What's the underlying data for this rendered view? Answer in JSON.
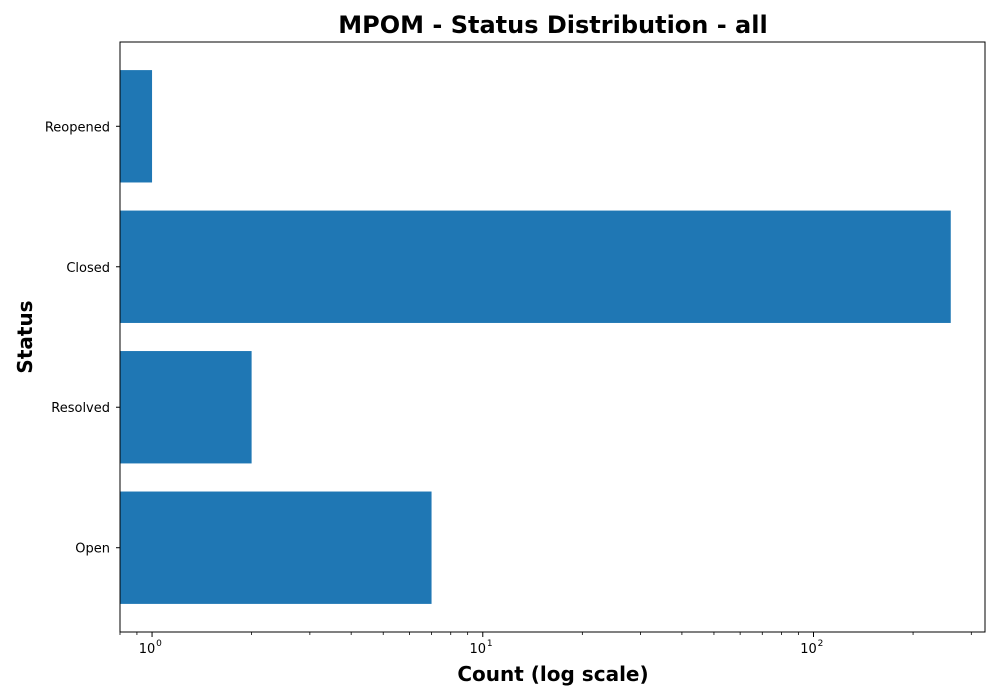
{
  "chart_data": {
    "type": "bar",
    "orientation": "horizontal",
    "title": "MPOM - Status Distribution - all",
    "xlabel": "Count (log scale)",
    "ylabel": "Status",
    "x_scale": "log",
    "xlim": [
      0.8,
      330
    ],
    "x_tick_labels": [
      {
        "value": 1,
        "base": "10",
        "exp": "0"
      },
      {
        "value": 10,
        "base": "10",
        "exp": "1"
      },
      {
        "value": 100,
        "base": "10",
        "exp": "2"
      }
    ],
    "categories": [
      "Open",
      "Resolved",
      "Closed",
      "Reopened"
    ],
    "values": [
      7,
      2,
      260,
      1
    ],
    "bar_color": "#1f77b4",
    "grid": false,
    "legend": false
  }
}
